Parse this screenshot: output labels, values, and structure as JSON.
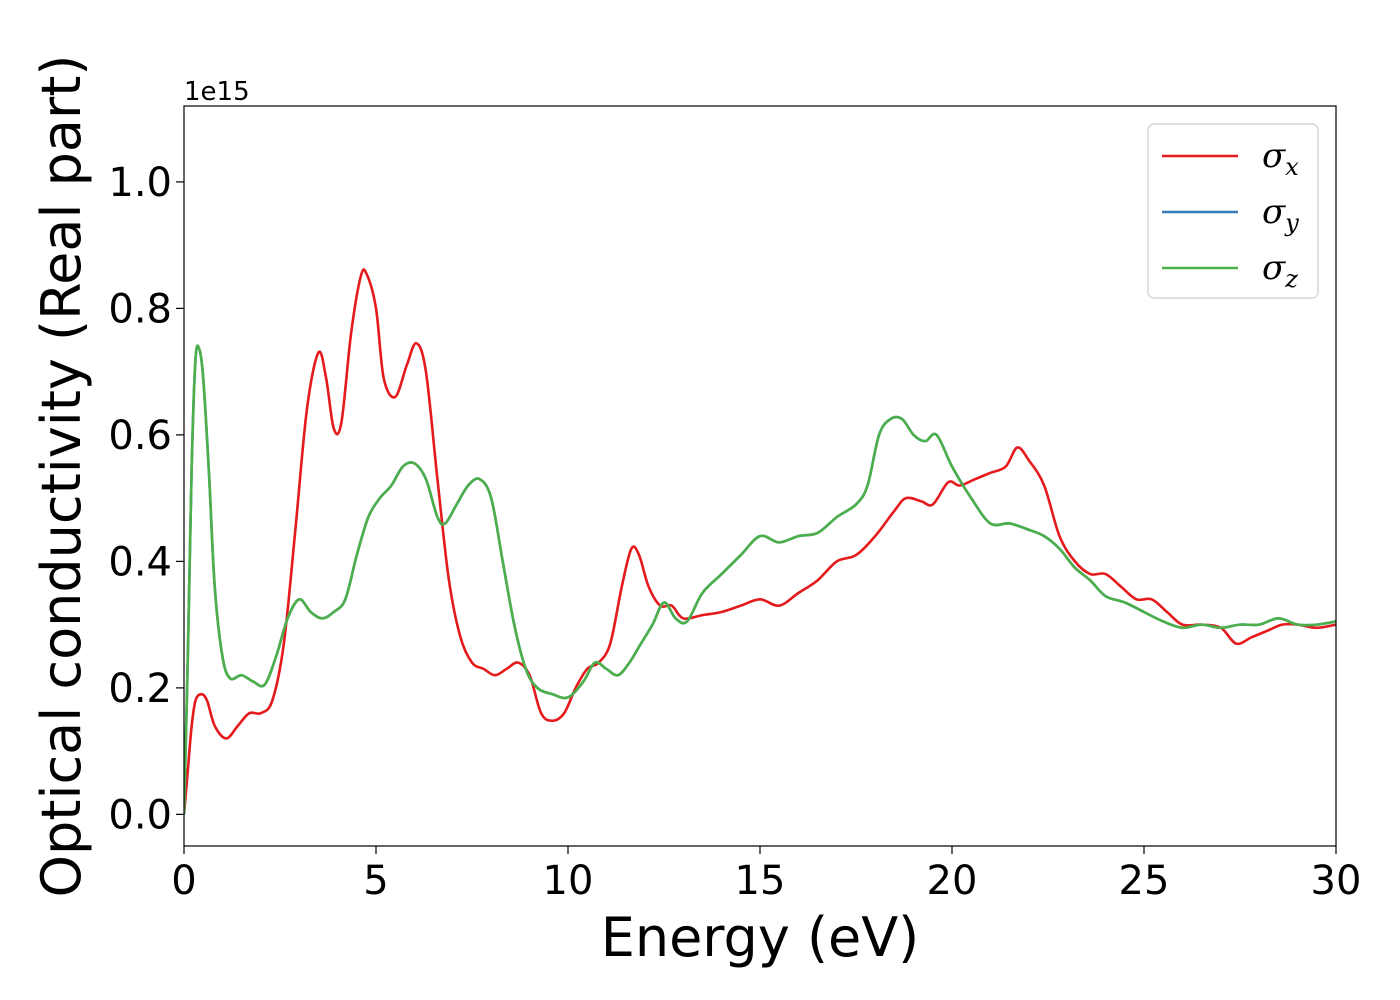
{
  "chart_data": {
    "type": "line",
    "title": "",
    "xlabel": "Energy (eV)",
    "ylabel": "Optical conductivity (Real part)",
    "y_offset_text": "1e15",
    "xlim": [
      0,
      30
    ],
    "ylim": [
      -0.05,
      1.12
    ],
    "x_ticks": [
      0,
      5,
      10,
      15,
      20,
      25,
      30
    ],
    "y_ticks": [
      0.0,
      0.2,
      0.4,
      0.6,
      0.8,
      1.0
    ],
    "x_tick_labels": [
      "0",
      "5",
      "10",
      "15",
      "20",
      "25",
      "30"
    ],
    "y_tick_labels": [
      "0.0",
      "0.2",
      "0.4",
      "0.6",
      "0.8",
      "1.0"
    ],
    "grid": false,
    "legend_position": "top-right",
    "series": [
      {
        "name": "σ",
        "subscript": "x",
        "color": "#e41a1c",
        "x": [
          0,
          0.1,
          0.2,
          0.3,
          0.45,
          0.6,
          0.8,
          1.1,
          1.4,
          1.7,
          2.0,
          2.3,
          2.6,
          2.9,
          3.2,
          3.5,
          3.7,
          3.9,
          4.1,
          4.35,
          4.6,
          4.75,
          5.0,
          5.2,
          5.5,
          5.8,
          6.05,
          6.3,
          6.6,
          6.9,
          7.2,
          7.5,
          7.8,
          8.1,
          8.4,
          8.7,
          9.0,
          9.3,
          9.6,
          9.9,
          10.2,
          10.5,
          10.8,
          11.1,
          11.4,
          11.65,
          11.85,
          12.1,
          12.4,
          12.7,
          13.0,
          13.5,
          14.0,
          14.5,
          15.0,
          15.5,
          16.0,
          16.5,
          17.0,
          17.5,
          18.0,
          18.5,
          18.8,
          19.2,
          19.5,
          19.9,
          20.2,
          20.6,
          21.0,
          21.4,
          21.7,
          22.0,
          22.4,
          22.8,
          23.2,
          23.6,
          24.0,
          24.4,
          24.8,
          25.2,
          25.6,
          26.0,
          26.5,
          27.0,
          27.4,
          27.8,
          28.2,
          28.6,
          29.0,
          29.5,
          30.0
        ],
        "y": [
          0.0,
          0.07,
          0.14,
          0.18,
          0.19,
          0.18,
          0.14,
          0.12,
          0.14,
          0.16,
          0.16,
          0.18,
          0.27,
          0.45,
          0.64,
          0.73,
          0.69,
          0.61,
          0.62,
          0.76,
          0.85,
          0.855,
          0.8,
          0.69,
          0.66,
          0.71,
          0.745,
          0.7,
          0.53,
          0.37,
          0.28,
          0.24,
          0.23,
          0.22,
          0.23,
          0.24,
          0.22,
          0.16,
          0.148,
          0.16,
          0.2,
          0.23,
          0.24,
          0.27,
          0.36,
          0.42,
          0.41,
          0.36,
          0.33,
          0.33,
          0.31,
          0.315,
          0.32,
          0.33,
          0.34,
          0.33,
          0.35,
          0.37,
          0.4,
          0.41,
          0.44,
          0.48,
          0.5,
          0.495,
          0.49,
          0.525,
          0.52,
          0.53,
          0.54,
          0.55,
          0.58,
          0.56,
          0.52,
          0.44,
          0.4,
          0.38,
          0.38,
          0.36,
          0.34,
          0.34,
          0.32,
          0.3,
          0.3,
          0.295,
          0.27,
          0.28,
          0.29,
          0.3,
          0.3,
          0.295,
          0.3
        ]
      },
      {
        "name": "σ",
        "subscript": "y",
        "color": "#377eb8",
        "x": [
          0,
          0.1,
          0.2,
          0.3,
          0.4,
          0.5,
          0.65,
          0.8,
          1.0,
          1.2,
          1.5,
          1.8,
          2.1,
          2.4,
          2.7,
          3.0,
          3.3,
          3.6,
          3.9,
          4.2,
          4.5,
          4.8,
          5.1,
          5.4,
          5.7,
          6.0,
          6.3,
          6.6,
          6.8,
          7.1,
          7.4,
          7.7,
          8.0,
          8.3,
          8.6,
          8.9,
          9.2,
          9.6,
          10.0,
          10.4,
          10.7,
          11.0,
          11.3,
          11.6,
          11.9,
          12.2,
          12.5,
          12.8,
          13.1,
          13.5,
          14.0,
          14.5,
          15.0,
          15.5,
          16.0,
          16.5,
          17.0,
          17.5,
          17.8,
          18.1,
          18.4,
          18.7,
          19.0,
          19.3,
          19.6,
          20.0,
          20.5,
          21.0,
          21.5,
          22.0,
          22.4,
          22.8,
          23.2,
          23.6,
          24.0,
          24.5,
          25.0,
          25.5,
          26.0,
          26.5,
          27.0,
          27.5,
          28.0,
          28.5,
          29.0,
          29.5,
          30.0
        ],
        "y": [
          0.0,
          0.25,
          0.55,
          0.72,
          0.735,
          0.69,
          0.54,
          0.36,
          0.25,
          0.215,
          0.22,
          0.21,
          0.205,
          0.25,
          0.31,
          0.34,
          0.32,
          0.31,
          0.32,
          0.34,
          0.41,
          0.47,
          0.5,
          0.52,
          0.55,
          0.555,
          0.53,
          0.47,
          0.46,
          0.49,
          0.52,
          0.53,
          0.5,
          0.4,
          0.3,
          0.23,
          0.2,
          0.19,
          0.185,
          0.21,
          0.24,
          0.23,
          0.22,
          0.24,
          0.27,
          0.3,
          0.335,
          0.31,
          0.305,
          0.35,
          0.38,
          0.41,
          0.44,
          0.43,
          0.44,
          0.445,
          0.47,
          0.49,
          0.52,
          0.6,
          0.625,
          0.625,
          0.6,
          0.59,
          0.6,
          0.55,
          0.5,
          0.46,
          0.46,
          0.45,
          0.44,
          0.42,
          0.39,
          0.37,
          0.345,
          0.335,
          0.32,
          0.305,
          0.295,
          0.3,
          0.295,
          0.3,
          0.3,
          0.31,
          0.3,
          0.3,
          0.305
        ]
      },
      {
        "name": "σ",
        "subscript": "z",
        "color": "#4daf4a",
        "x": [
          0,
          0.1,
          0.2,
          0.3,
          0.4,
          0.5,
          0.65,
          0.8,
          1.0,
          1.2,
          1.5,
          1.8,
          2.1,
          2.4,
          2.7,
          3.0,
          3.3,
          3.6,
          3.9,
          4.2,
          4.5,
          4.8,
          5.1,
          5.4,
          5.7,
          6.0,
          6.3,
          6.6,
          6.8,
          7.1,
          7.4,
          7.7,
          8.0,
          8.3,
          8.6,
          8.9,
          9.2,
          9.6,
          10.0,
          10.4,
          10.7,
          11.0,
          11.3,
          11.6,
          11.9,
          12.2,
          12.5,
          12.8,
          13.1,
          13.5,
          14.0,
          14.5,
          15.0,
          15.5,
          16.0,
          16.5,
          17.0,
          17.5,
          17.8,
          18.1,
          18.4,
          18.7,
          19.0,
          19.3,
          19.6,
          20.0,
          20.5,
          21.0,
          21.5,
          22.0,
          22.4,
          22.8,
          23.2,
          23.6,
          24.0,
          24.5,
          25.0,
          25.5,
          26.0,
          26.5,
          27.0,
          27.5,
          28.0,
          28.5,
          29.0,
          29.5,
          30.0
        ],
        "y": [
          0.0,
          0.25,
          0.55,
          0.72,
          0.735,
          0.69,
          0.54,
          0.36,
          0.25,
          0.215,
          0.22,
          0.21,
          0.205,
          0.25,
          0.31,
          0.34,
          0.32,
          0.31,
          0.32,
          0.34,
          0.41,
          0.47,
          0.5,
          0.52,
          0.55,
          0.555,
          0.53,
          0.47,
          0.46,
          0.49,
          0.52,
          0.53,
          0.5,
          0.4,
          0.3,
          0.23,
          0.2,
          0.19,
          0.185,
          0.21,
          0.24,
          0.23,
          0.22,
          0.24,
          0.27,
          0.3,
          0.335,
          0.31,
          0.305,
          0.35,
          0.38,
          0.41,
          0.44,
          0.43,
          0.44,
          0.445,
          0.47,
          0.49,
          0.52,
          0.6,
          0.625,
          0.625,
          0.6,
          0.59,
          0.6,
          0.55,
          0.5,
          0.46,
          0.46,
          0.45,
          0.44,
          0.42,
          0.39,
          0.37,
          0.345,
          0.335,
          0.32,
          0.305,
          0.295,
          0.3,
          0.295,
          0.3,
          0.3,
          0.31,
          0.3,
          0.3,
          0.305
        ]
      }
    ]
  }
}
